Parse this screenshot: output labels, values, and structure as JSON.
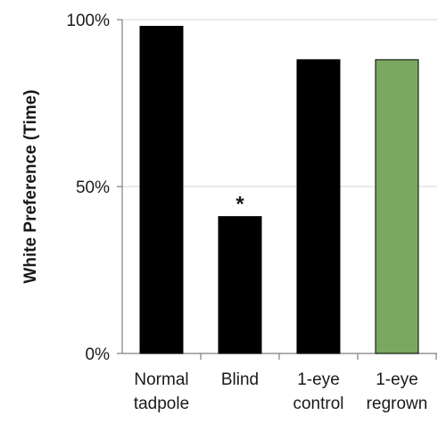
{
  "chart_data": {
    "type": "bar",
    "categories": [
      [
        "Normal",
        "tadpole"
      ],
      [
        "Blind"
      ],
      [
        "1-eye",
        "control"
      ],
      [
        "1-eye",
        "regrown"
      ]
    ],
    "values": [
      98,
      41,
      88,
      88
    ],
    "bar_colors": [
      "#000000",
      "#000000",
      "#000000",
      "#7aa860"
    ],
    "ylabel": "White Preference (Time)",
    "ylim": [
      0,
      100
    ],
    "yticks": [
      0,
      50,
      100
    ],
    "ytick_labels": [
      "0%",
      "50%",
      "100%"
    ],
    "annotations": [
      {
        "category_index": 1,
        "text": "*"
      }
    ],
    "grid": "horizontal at 50% and 100%"
  }
}
